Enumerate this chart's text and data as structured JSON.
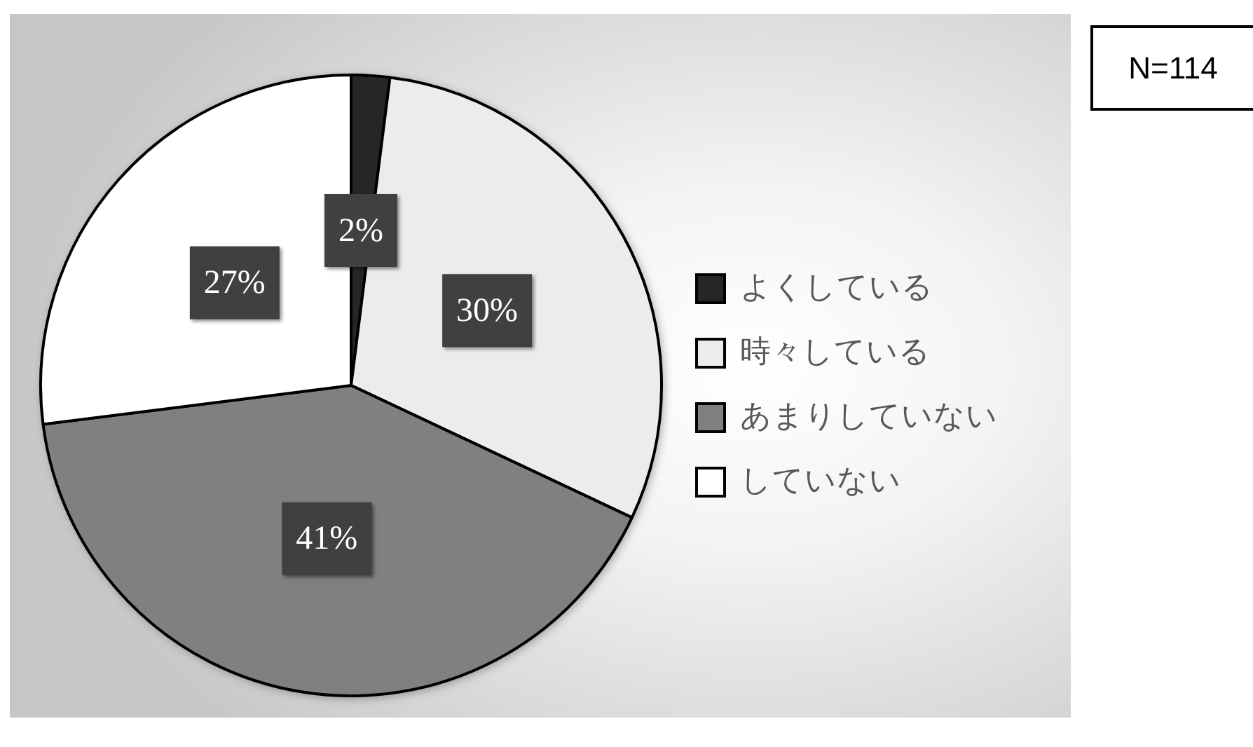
{
  "chart_data": {
    "type": "pie",
    "categories": [
      "よくしている",
      "時々している",
      "あまりしていない",
      "していない"
    ],
    "values": [
      2,
      30,
      41,
      27
    ],
    "colors": [
      "#262626",
      "#ececec",
      "#808080",
      "#ffffff"
    ],
    "value_labels": [
      "2%",
      "30%",
      "41%",
      "27%"
    ],
    "legend": "right",
    "annotations": [
      "N=114"
    ]
  }
}
